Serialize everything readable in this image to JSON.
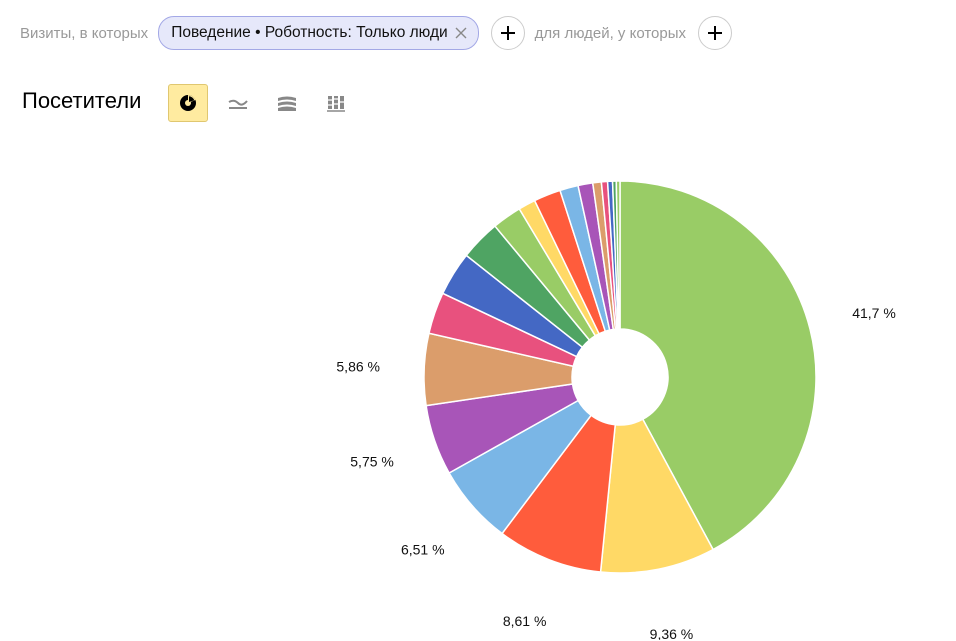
{
  "filters": {
    "visits_label": "Визиты, в которых",
    "chip_text": "Поведение • Роботность: Только люди",
    "people_label": "для людей, у которых"
  },
  "header": {
    "title": "Посетители",
    "chart_types": [
      {
        "name": "pie",
        "icon": "pie-chart-icon",
        "active": true
      },
      {
        "name": "line",
        "icon": "line-chart-icon",
        "active": false
      },
      {
        "name": "area",
        "icon": "area-chart-icon",
        "active": false
      },
      {
        "name": "bar",
        "icon": "bar-chart-icon",
        "active": false
      }
    ]
  },
  "colors": {
    "accent_active": "#ffeba0",
    "chip_bg": "#e6e8fa"
  },
  "chart_data": {
    "type": "pie",
    "donut": true,
    "values": [
      41.7,
      9.36,
      8.61,
      6.51,
      5.75,
      5.86,
      3.4,
      3.6,
      3.3,
      2.4,
      1.4,
      2.2,
      1.5,
      1.2,
      0.7,
      0.5,
      0.4,
      0.3,
      0.3
    ],
    "labels": [
      "41,7 %",
      "9,36 %",
      "8,61 %",
      "6,51 %",
      "5,75 %",
      "5,86 %",
      "",
      "",
      "",
      "",
      "",
      "",
      "",
      "",
      "",
      "",
      "",
      "",
      ""
    ],
    "colors": [
      "#99cc66",
      "#ffd966",
      "#ff5c3c",
      "#7ab6e6",
      "#a855b8",
      "#db9d6b",
      "#e8517e",
      "#4468c4",
      "#4fa463",
      "#99cc66",
      "#ffd966",
      "#ff5c3c",
      "#7ab6e6",
      "#a855b8",
      "#db9d6b",
      "#e8517e",
      "#4468c4",
      "#4fa463",
      "#99cc66"
    ]
  }
}
